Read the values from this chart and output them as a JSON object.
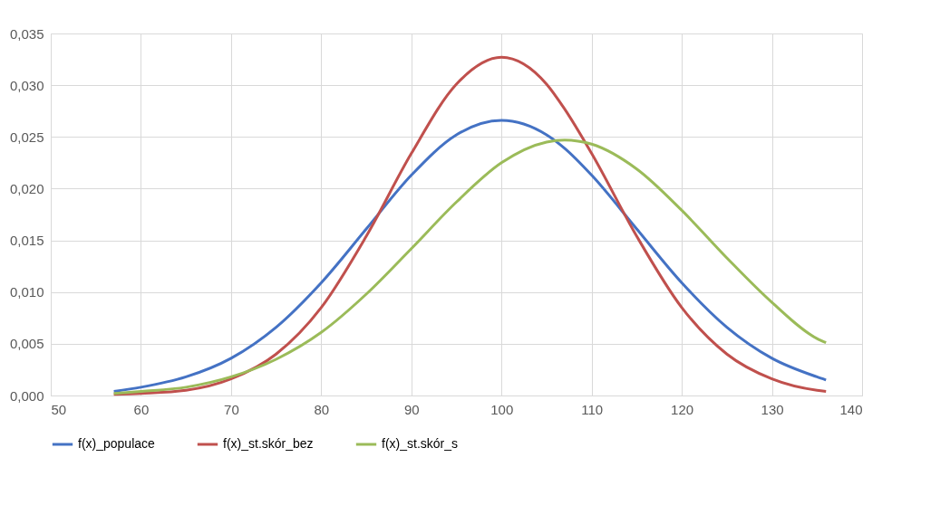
{
  "chart_data": {
    "type": "line",
    "x": [
      57,
      60,
      65,
      70,
      75,
      80,
      85,
      90,
      95,
      100,
      105,
      107,
      110,
      115,
      120,
      125,
      130,
      135,
      136
    ],
    "series": [
      {
        "name": "f(x)_populace",
        "color": "#4472c4",
        "values": [
          0.0004,
          0.0008,
          0.0018,
          0.0036,
          0.0066,
          0.0109,
          0.0161,
          0.0213,
          0.0252,
          0.0266,
          0.0252,
          0.0239,
          0.0213,
          0.0161,
          0.0109,
          0.0066,
          0.0036,
          0.0018,
          0.0015
        ]
      },
      {
        "name": "f(x)_st.skór_bez",
        "color": "#c0504d",
        "values": [
          0.0001,
          0.0002,
          0.0005,
          0.0016,
          0.004,
          0.0085,
          0.0154,
          0.0234,
          0.0301,
          0.0327,
          0.0301,
          0.0277,
          0.0234,
          0.0154,
          0.0085,
          0.004,
          0.0016,
          0.0005,
          0.0004
        ]
      },
      {
        "name": "f(x)_st.skór_s",
        "color": "#9bbb59",
        "values": [
          0.0002,
          0.0004,
          0.0008,
          0.0018,
          0.0035,
          0.0061,
          0.0098,
          0.0142,
          0.0187,
          0.0225,
          0.0245,
          0.0247,
          0.0243,
          0.0219,
          0.0179,
          0.0133,
          0.009,
          0.0055,
          0.0051
        ]
      }
    ],
    "xlim": [
      50,
      140
    ],
    "xticks": [
      50,
      60,
      70,
      80,
      90,
      100,
      110,
      120,
      130,
      140
    ],
    "ylim": [
      0,
      0.035
    ],
    "yticks": [
      {
        "value": 0,
        "label": "0,000"
      },
      {
        "value": 0.005,
        "label": "0,005"
      },
      {
        "value": 0.01,
        "label": "0,010"
      },
      {
        "value": 0.015,
        "label": "0,015"
      },
      {
        "value": 0.02,
        "label": "0,020"
      },
      {
        "value": 0.025,
        "label": "0,025"
      },
      {
        "value": 0.03,
        "label": "0,030"
      },
      {
        "value": 0.035,
        "label": "0,035"
      }
    ],
    "grid": true,
    "legend": "bottom",
    "marker": "none",
    "line_style": "solid"
  }
}
